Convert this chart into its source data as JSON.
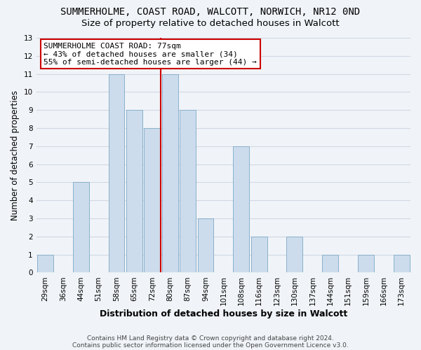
{
  "title": "SUMMERHOLME, COAST ROAD, WALCOTT, NORWICH, NR12 0ND",
  "subtitle": "Size of property relative to detached houses in Walcott",
  "xlabel": "Distribution of detached houses by size in Walcott",
  "ylabel": "Number of detached properties",
  "bar_color": "#ccdcec",
  "bar_edge_color": "#8ab0cc",
  "categories": [
    "29sqm",
    "36sqm",
    "44sqm",
    "51sqm",
    "58sqm",
    "65sqm",
    "72sqm",
    "80sqm",
    "87sqm",
    "94sqm",
    "101sqm",
    "108sqm",
    "116sqm",
    "123sqm",
    "130sqm",
    "137sqm",
    "144sqm",
    "151sqm",
    "159sqm",
    "166sqm",
    "173sqm"
  ],
  "values": [
    1,
    0,
    5,
    0,
    11,
    9,
    8,
    11,
    9,
    3,
    0,
    7,
    2,
    0,
    2,
    0,
    1,
    0,
    1,
    0,
    1
  ],
  "reference_line_color": "#cc0000",
  "ylim": [
    0,
    13
  ],
  "yticks": [
    0,
    1,
    2,
    3,
    4,
    5,
    6,
    7,
    8,
    9,
    10,
    11,
    12,
    13
  ],
  "annotation_text": "SUMMERHOLME COAST ROAD: 77sqm\n← 43% of detached houses are smaller (34)\n55% of semi-detached houses are larger (44) →",
  "annotation_box_color": "#ffffff",
  "annotation_box_edge": "#cc0000",
  "footer1": "Contains HM Land Registry data © Crown copyright and database right 2024.",
  "footer2": "Contains public sector information licensed under the Open Government Licence v3.0.",
  "background_color": "#f0f4f8",
  "grid_color": "#d0d8e4",
  "title_fontsize": 10,
  "subtitle_fontsize": 9.5,
  "tick_fontsize": 7.5,
  "ylabel_fontsize": 8.5,
  "xlabel_fontsize": 9,
  "annotation_fontsize": 8,
  "footer_fontsize": 6.5
}
